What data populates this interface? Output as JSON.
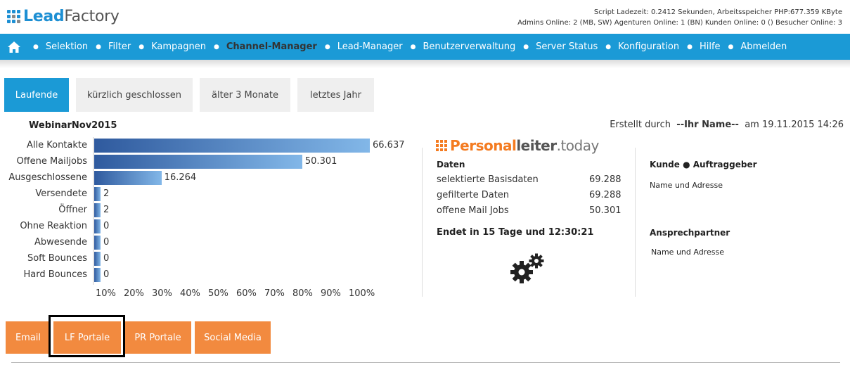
{
  "header": {
    "logo_lead": "Lead",
    "logo_factory": "Factory",
    "stats_line1": "Script Ladezeit: 0.2412 Sekunden, Arbeitsspeicher PHP:677.359 KByte",
    "stats_line2": "Admins Online: 2 (MB, SW) Agenturen Online: 1 (BN) Kunden Online: 0 () Besucher Online: 3"
  },
  "nav": {
    "items": [
      "Selektion",
      "Filter",
      "Kampagnen",
      "Channel-Manager",
      "Lead-Manager",
      "Benutzerverwaltung",
      "Server Status",
      "Konfiguration",
      "Hilfe",
      "Abmelden"
    ],
    "active_index": 3
  },
  "tabs": [
    "Laufende",
    "kürzlich geschlossen",
    "älter 3 Monate",
    "letztes Jahr"
  ],
  "campaign": {
    "name": "WebinarNov2015",
    "created_prefix": "Erstellt durch",
    "created_by": "--Ihr Name--",
    "created_at": "am 19.11.2015 14:26"
  },
  "chart_data": {
    "type": "bar",
    "orientation": "horizontal",
    "categories": [
      "Alle Kontakte",
      "Offene Mailjobs",
      "Ausgeschlossene",
      "Versendete",
      "Öffner",
      "Ohne Reaktion",
      "Abwesende",
      "Soft Bounces",
      "Hard Bounces"
    ],
    "values": [
      66637,
      50301,
      16264,
      2,
      2,
      0,
      0,
      0,
      0
    ],
    "value_labels": [
      "66.637",
      "50.301",
      "16.264",
      "2",
      "2",
      "0",
      "0",
      "0",
      "0"
    ],
    "x_ticks": [
      "10%",
      "20%",
      "30%",
      "40%",
      "50%",
      "60%",
      "70%",
      "80%",
      "90%",
      "100%"
    ],
    "xlim": [
      0,
      66637
    ],
    "grid": false
  },
  "brand": {
    "part1": "Personal",
    "part2": "leiter",
    "part3": ".today"
  },
  "daten": {
    "heading": "Daten",
    "rows": [
      {
        "label": "selektierte Basisdaten",
        "value": "69.288"
      },
      {
        "label": "gefilterte Daten",
        "value": "69.288"
      },
      {
        "label": "offene Mail Jobs",
        "value": "50.301"
      }
    ],
    "ends": "Endet in 15 Tage und 12:30:21"
  },
  "kunde": {
    "heading": "Kunde ● Auftraggeber",
    "address": "Name und Adresse",
    "contact_heading": "Ansprechpartner",
    "contact_address": "Name und Adresse"
  },
  "channels": [
    "Email",
    "LF Portale",
    "PR Portale",
    "Social Media"
  ],
  "colors": {
    "nav": "#1b9ad6",
    "channel_button": "#f28a3f",
    "brand_orange": "#f47b20",
    "bar_dark": "#2f5a9e",
    "bar_light": "#82b7e8"
  }
}
